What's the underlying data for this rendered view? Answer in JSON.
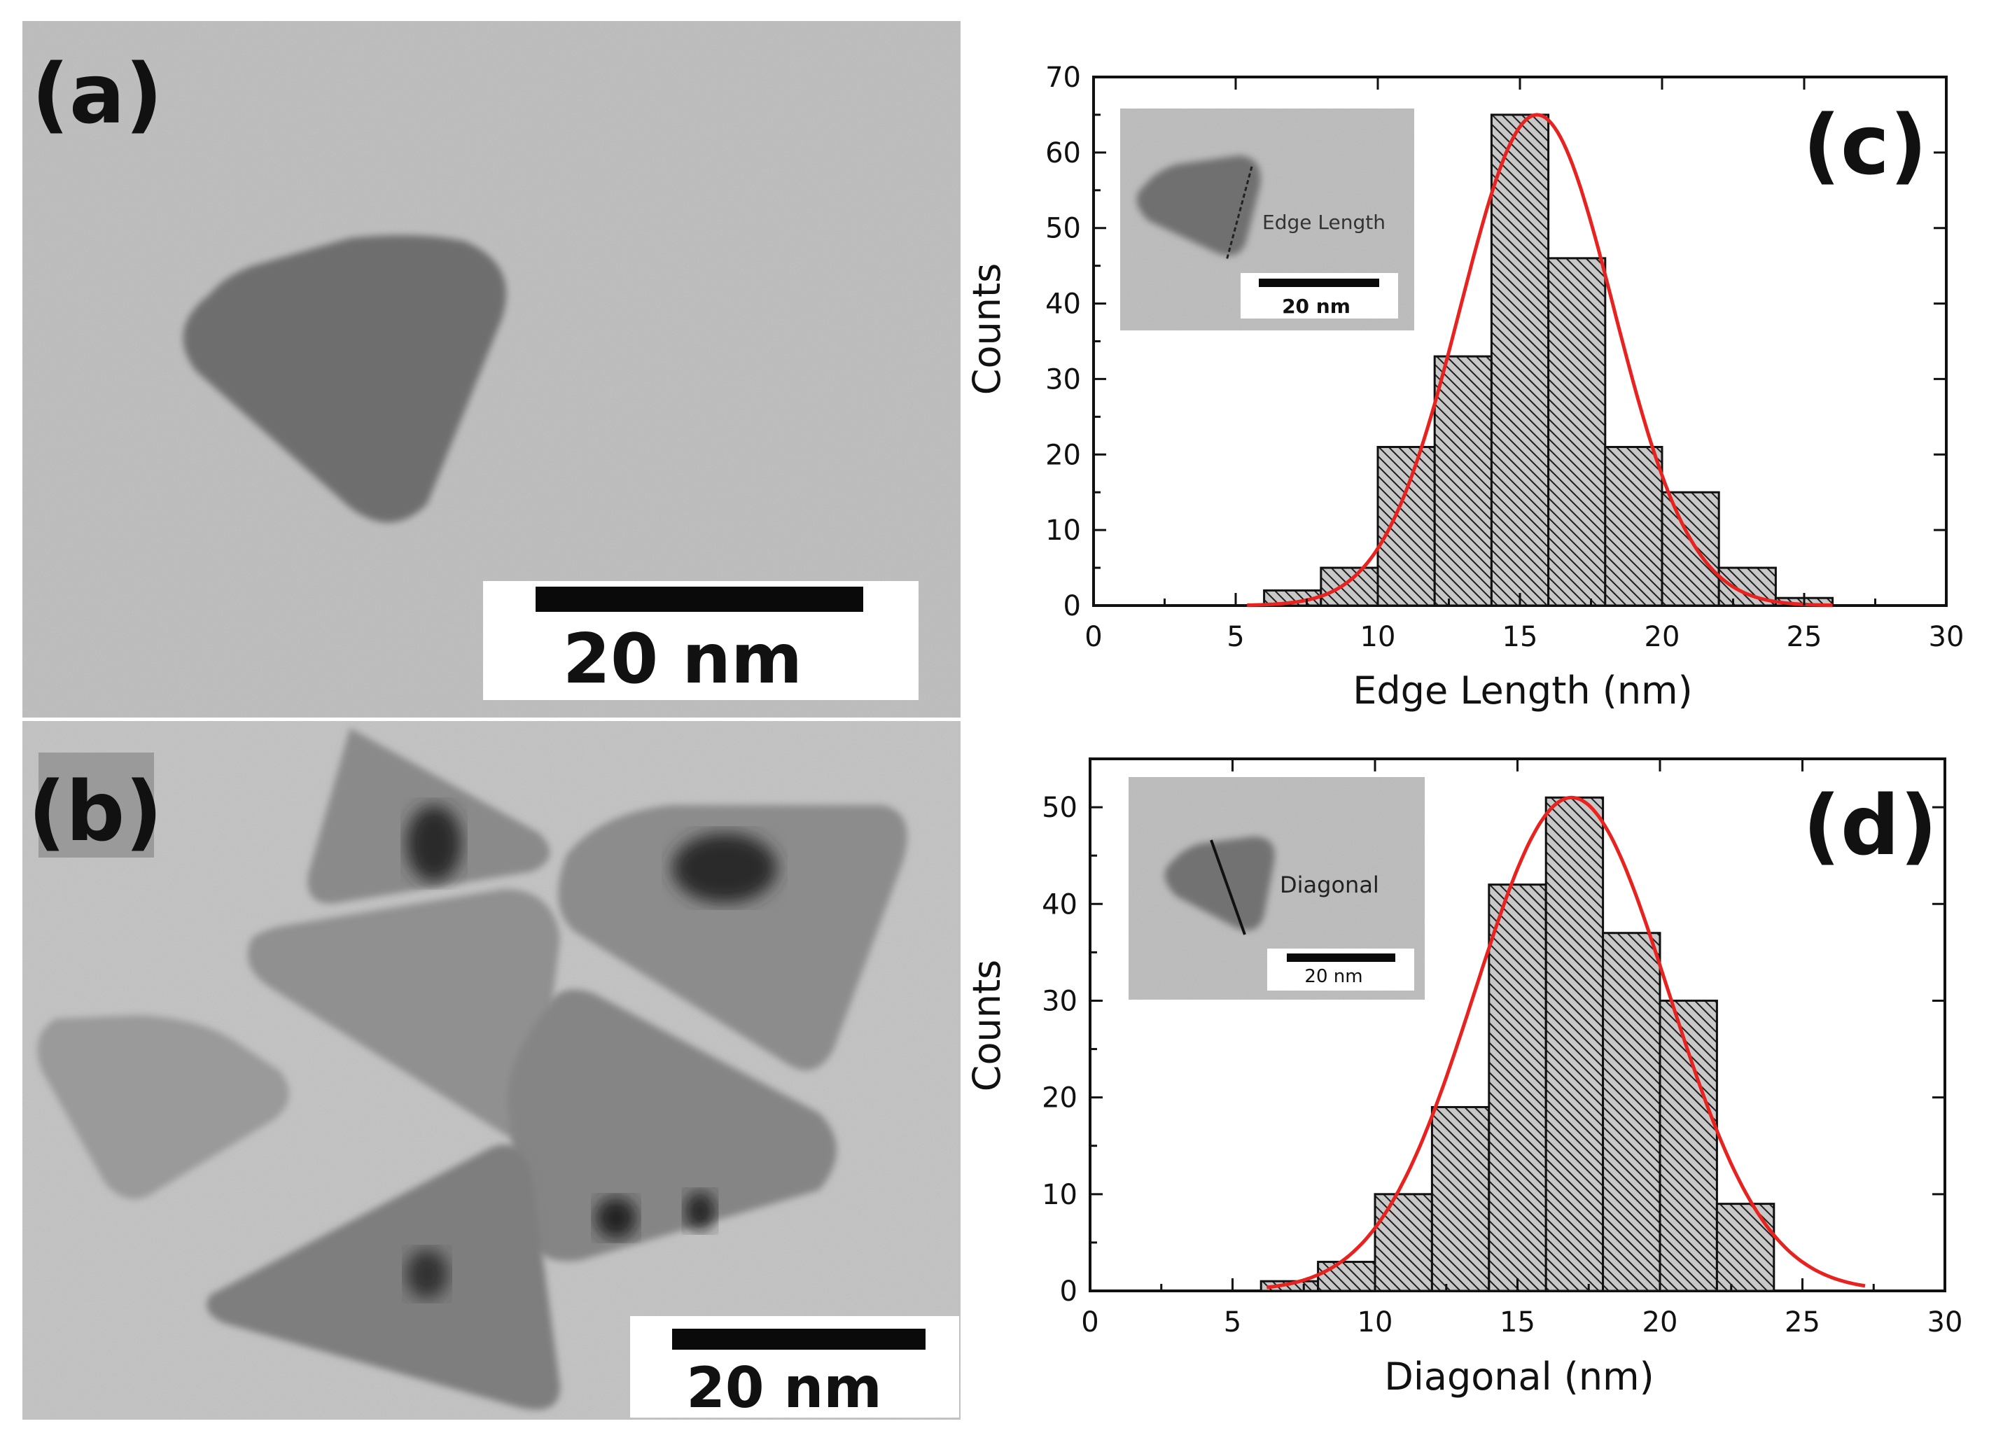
{
  "panels": {
    "a": {
      "label": "(a)",
      "scale_bar": "20 nm"
    },
    "b": {
      "label": "(b)",
      "scale_bar": "20 nm"
    }
  },
  "chart_data": [
    {
      "panel_label": "(c)",
      "type": "bar",
      "title": "",
      "xlabel": "Edge Length (nm)",
      "ylabel": "Counts",
      "xlim": [
        0,
        30
      ],
      "ylim": [
        0,
        70
      ],
      "xticks": [
        0,
        5,
        10,
        15,
        20,
        25,
        30
      ],
      "yticks": [
        0,
        10,
        20,
        30,
        40,
        50,
        60,
        70
      ],
      "bin_width": 2,
      "bins": [
        {
          "start": 6,
          "value": 2
        },
        {
          "start": 8,
          "value": 5
        },
        {
          "start": 10,
          "value": 21
        },
        {
          "start": 12,
          "value": 33
        },
        {
          "start": 14,
          "value": 65
        },
        {
          "start": 16,
          "value": 46
        },
        {
          "start": 18,
          "value": 21
        },
        {
          "start": 20,
          "value": 15
        },
        {
          "start": 22,
          "value": 5
        },
        {
          "start": 24,
          "value": 1
        }
      ],
      "fit": {
        "type": "gaussian",
        "color": "#e8231f",
        "peak": 65,
        "center": 15.6,
        "sigma": 2.7,
        "xrange": [
          5.4,
          26
        ]
      },
      "grid": false,
      "inset": {
        "label": "Edge Length",
        "scale_bar": "20 nm"
      }
    },
    {
      "panel_label": "(d)",
      "type": "bar",
      "title": "",
      "xlabel": "Diagonal (nm)",
      "ylabel": "Counts",
      "xlim": [
        0,
        30
      ],
      "ylim": [
        0,
        55
      ],
      "xticks": [
        0,
        5,
        10,
        15,
        20,
        25,
        30
      ],
      "yticks": [
        0,
        10,
        20,
        30,
        40,
        50
      ],
      "bin_width": 2,
      "bins": [
        {
          "start": 6,
          "value": 1
        },
        {
          "start": 8,
          "value": 3
        },
        {
          "start": 10,
          "value": 10
        },
        {
          "start": 12,
          "value": 19
        },
        {
          "start": 14,
          "value": 42
        },
        {
          "start": 16,
          "value": 51
        },
        {
          "start": 18,
          "value": 37
        },
        {
          "start": 20,
          "value": 30
        },
        {
          "start": 22,
          "value": 9
        }
      ],
      "fit": {
        "type": "gaussian",
        "color": "#e8231f",
        "peak": 51,
        "center": 16.9,
        "sigma": 3.4,
        "xrange": [
          6.2,
          27.2
        ]
      },
      "grid": false,
      "inset": {
        "label": "Diagonal",
        "scale_bar": "20 nm"
      }
    }
  ],
  "colors": {
    "bar_fill": "#c8c8c8",
    "hatch": "#222222",
    "fit": "#e8231f",
    "tem_background": "#b8b8b8"
  }
}
